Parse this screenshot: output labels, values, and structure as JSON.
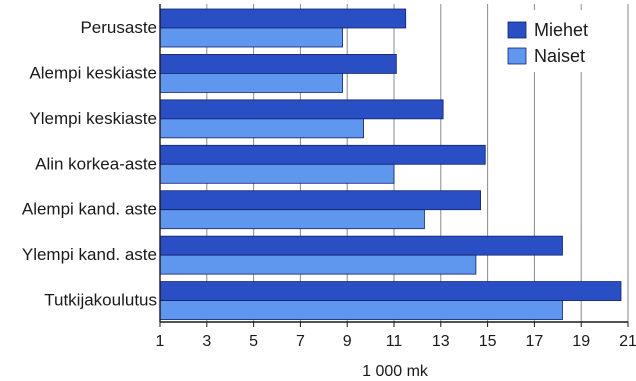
{
  "chart_data": {
    "type": "bar",
    "orientation": "horizontal",
    "title": "",
    "xlabel": "1 000 mk",
    "ylabel": "",
    "xlim": [
      1,
      21
    ],
    "xticks": [
      1,
      3,
      5,
      7,
      9,
      11,
      13,
      15,
      17,
      19,
      21
    ],
    "grid": true,
    "legend_position": "top-right",
    "categories": [
      "Perusaste",
      "Alempi keskiaste",
      "Ylempi keskiaste",
      "Alin korkea-aste",
      "Alempi kand. aste",
      "Ylempi kand. aste",
      "Tutkijakoulutus"
    ],
    "series": [
      {
        "name": "Miehet",
        "color": "#2a4fc4",
        "values": [
          11.5,
          11.1,
          13.1,
          14.9,
          14.7,
          18.2,
          20.7
        ]
      },
      {
        "name": "Naiset",
        "color": "#5f96ee",
        "values": [
          8.8,
          8.8,
          9.7,
          11.0,
          12.3,
          14.5,
          18.2
        ]
      }
    ]
  }
}
